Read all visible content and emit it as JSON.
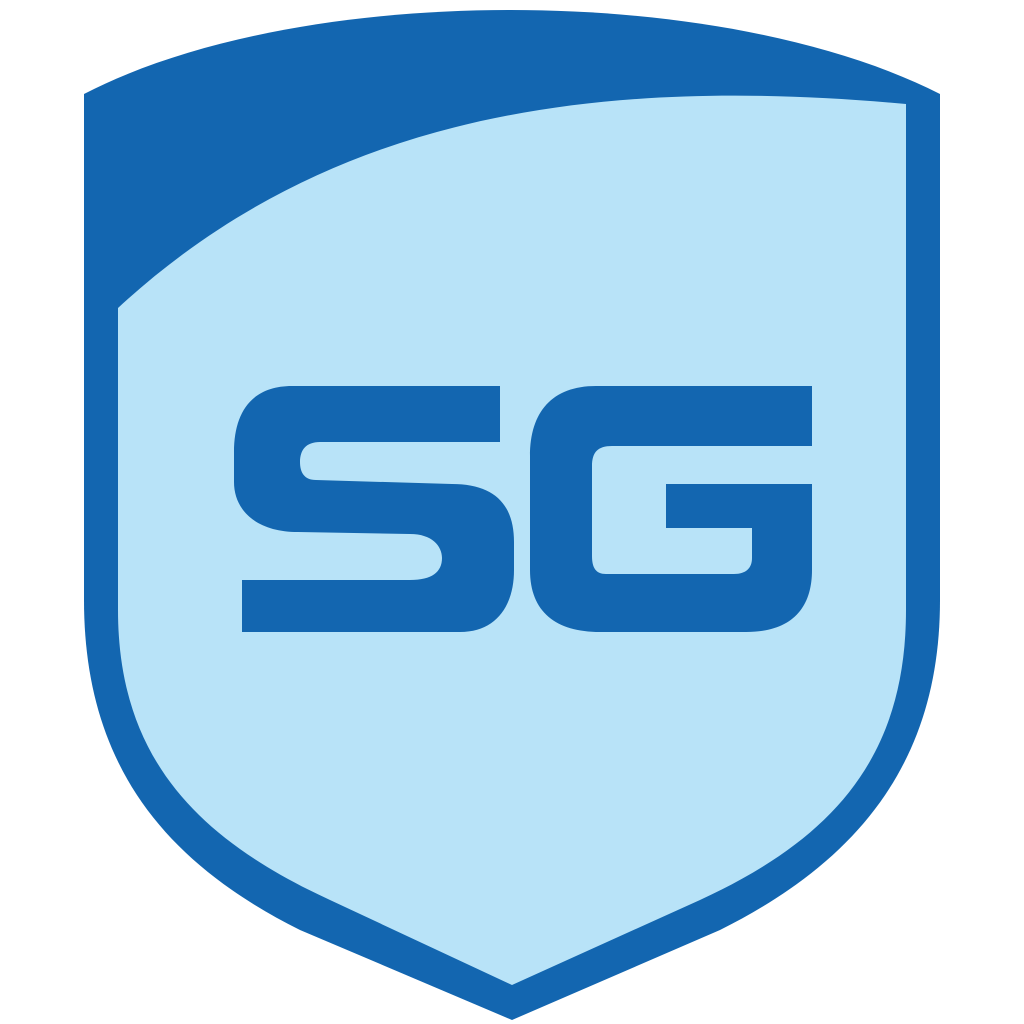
{
  "logo": {
    "name": "shield-logo",
    "monogram": "SG",
    "colors": {
      "primary": "#1366B0",
      "light": "#B8E3F8",
      "background": "#FFFFFF"
    }
  }
}
